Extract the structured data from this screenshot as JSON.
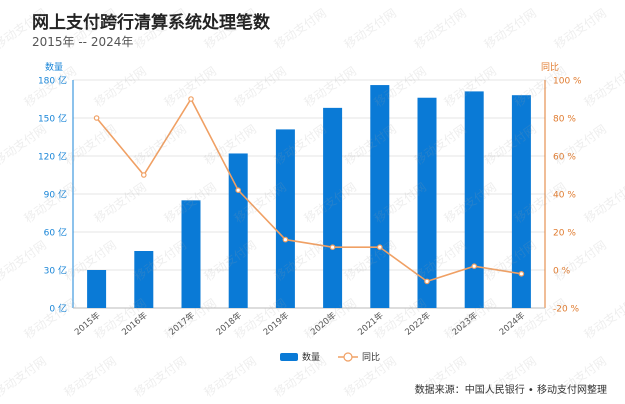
{
  "title": "网上支付跨行清算系统处理笔数",
  "subtitle": "2015年 -- 2024年",
  "source": "数据来源：中国人民银行 • 移动支付网整理",
  "watermark": "移动支付网",
  "colors": {
    "bar": "#0a7ad6",
    "line": "#f0a064",
    "axis_left": "#1a86d8",
    "axis_right": "#e07b2f",
    "grid": "#e4e4e4"
  },
  "chart_data": {
    "type": "bar",
    "title": "网上支付跨行清算系统处理笔数",
    "categories": [
      "2015年",
      "2016年",
      "2017年",
      "2018年",
      "2019年",
      "2020年",
      "2021年",
      "2022年",
      "2023年",
      "2024年"
    ],
    "series": [
      {
        "name": "数量",
        "type": "bar",
        "axis": "left",
        "values": [
          30,
          45,
          85,
          122,
          141,
          158,
          176,
          166,
          171,
          168
        ]
      },
      {
        "name": "同比",
        "type": "line",
        "axis": "right",
        "values": [
          80,
          50,
          90,
          42,
          16,
          12,
          12,
          -6,
          2,
          -2
        ]
      }
    ],
    "yleft": {
      "label": "数量",
      "min": 0,
      "max": 180,
      "ticks": [
        0,
        30,
        60,
        90,
        120,
        150,
        180
      ],
      "tick_labels": [
        "0 亿",
        "30 亿",
        "60 亿",
        "90 亿",
        "120 亿",
        "150 亿",
        "180 亿"
      ]
    },
    "yright": {
      "label": "同比",
      "min": -20,
      "max": 100,
      "ticks": [
        -20,
        0,
        20,
        40,
        60,
        80,
        100
      ],
      "tick_labels": [
        "-20 %",
        "0 %",
        "20 %",
        "40 %",
        "60 %",
        "80 %",
        "100 %"
      ]
    },
    "legend": {
      "position": "bottom",
      "entries": [
        "数量",
        "同比"
      ]
    }
  }
}
